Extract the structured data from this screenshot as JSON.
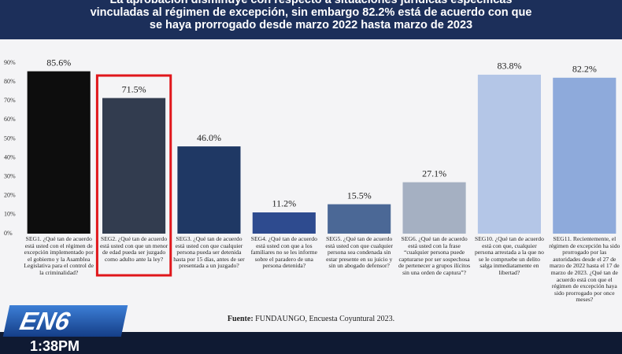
{
  "chart_data": {
    "type": "bar",
    "title": "La aprobación disminuye con respecto a situaciones jurídicas específicas vinculadas al régimen de excepción, sin embargo 82.2% está de acuerdo con que se haya prorrogado desde marzo 2022 hasta marzo de 2023",
    "categories": [
      "SEG1. ¿Qué tan de acuerdo está usted con el régimen de excepción implementado por el gobierno y la Asamblea Legislativa para el control de la criminalidad?",
      "SEG2. ¿Qué tan de acuerdo está usted con que un menor de edad pueda ser juzgado como adulto ante la ley?",
      "SEG3. ¿Qué tan de acuerdo está usted con que cualquier persona pueda ser detenida hasta por 15 días, antes de ser presentada a un juzgado?",
      "SEG4. ¿Qué tan de acuerdo está usted con que a los familiares no se les informe sobre el paradero de una persona detenida?",
      "SEG5. ¿Qué tan de acuerdo está usted con que cualquier persona sea condenada sin estar presente en su juicio y sin un abogado defensor?",
      "SEG6. ¿Qué tan de acuerdo está usted con la frase “cualquier persona puede capturarse por ser sospechosa de pertenecer a grupos ilícitos sin una orden de captura”?",
      "SEG10. ¿Qué tan de acuerdo está con que, cualquier persona arrestada a la que no se le compruebe un delito salga inmediatamente en libertad?",
      "SEG11. Recientemente, el régimen de excepción ha sido prorrogado por las autoridades desde el 27 de marzo de 2022 hasta el 17 de marzo de 2023. ¿Qué tan de acuerdo está con que el régimen de excepción haya sido prorrogado por once meses?"
    ],
    "values": [
      85.6,
      71.5,
      46.0,
      11.2,
      15.5,
      27.1,
      83.8,
      82.2
    ],
    "value_labels": [
      "85.6%",
      "71.5%",
      "46.0%",
      "11.2%",
      "15.5%",
      "27.1%",
      "83.8%",
      "82.2%"
    ],
    "colors": [
      "#0d0d0d",
      "#323c4f",
      "#1f3864",
      "#2e4b8f",
      "#4b6896",
      "#a5b0c2",
      "#b4c6e7",
      "#8eaadb"
    ],
    "highlight": 1,
    "highlight_color": "#e0161b",
    "ylim": [
      0,
      90
    ],
    "yticks": [
      {
        "value": 0,
        "label": "0%"
      },
      {
        "value": 10,
        "label": "10%"
      },
      {
        "value": 20,
        "label": "20%"
      },
      {
        "value": 30,
        "label": "30%"
      },
      {
        "value": 40,
        "label": "40%"
      },
      {
        "value": 50,
        "label": "50%"
      },
      {
        "value": 60,
        "label": "60%"
      },
      {
        "value": 70,
        "label": "70%"
      },
      {
        "value": 80,
        "label": "80%"
      },
      {
        "value": 90,
        "label": "90%"
      }
    ],
    "source_label": "Fuente:",
    "source": "FUNDAUNGO, Encuesta Coyuntural 2023."
  },
  "overlay": {
    "logo": "EN6",
    "time": "1:38PM"
  }
}
